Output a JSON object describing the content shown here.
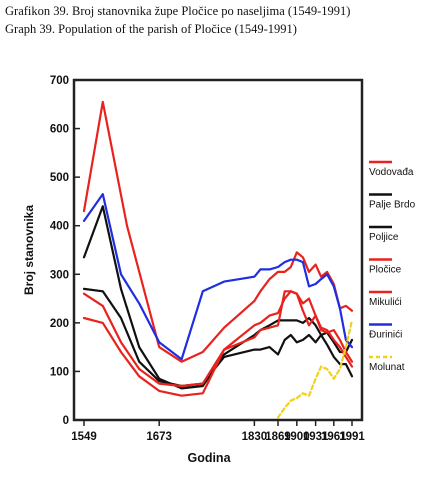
{
  "captions": {
    "line1": "Grafikon 39. Broj stanovnika župe Pločice po naseljima (1549-1991)",
    "line2": "Graph 39. Population of the parish of Pločice (1549-1991)"
  },
  "chart_data": {
    "type": "line",
    "xlabel": "Godina",
    "ylabel": "Broj stanovnika",
    "x_tick_labels": [
      "1549",
      "1673",
      "1830",
      "1869",
      "1900",
      "1931",
      "1961",
      "1991"
    ],
    "x_tick_values": [
      1549,
      1673,
      1830,
      1869,
      1900,
      1931,
      1961,
      1991
    ],
    "ylim": [
      0,
      700
    ],
    "y_ticks": [
      0,
      100,
      200,
      300,
      400,
      500,
      600,
      700
    ],
    "grid": false,
    "legend_position": "right",
    "series": [
      {
        "name": "Vodovađa",
        "color": "#e8231e",
        "points": [
          [
            1549,
            430
          ],
          [
            1580,
            655
          ],
          [
            1620,
            400
          ],
          [
            1673,
            150
          ],
          [
            1710,
            120
          ],
          [
            1745,
            140
          ],
          [
            1780,
            190
          ],
          [
            1830,
            245
          ],
          [
            1840,
            265
          ],
          [
            1855,
            290
          ],
          [
            1869,
            305
          ],
          [
            1880,
            305
          ],
          [
            1890,
            315
          ],
          [
            1900,
            345
          ],
          [
            1910,
            335
          ],
          [
            1920,
            305
          ],
          [
            1931,
            320
          ],
          [
            1940,
            295
          ],
          [
            1950,
            305
          ],
          [
            1961,
            280
          ],
          [
            1971,
            230
          ],
          [
            1981,
            235
          ],
          [
            1991,
            225
          ]
        ]
      },
      {
        "name": "Palje Brdo",
        "color": "#111111",
        "points": [
          [
            1549,
            270
          ],
          [
            1580,
            265
          ],
          [
            1610,
            210
          ],
          [
            1640,
            120
          ],
          [
            1673,
            80
          ],
          [
            1710,
            70
          ],
          [
            1745,
            75
          ],
          [
            1780,
            130
          ],
          [
            1830,
            145
          ],
          [
            1840,
            145
          ],
          [
            1855,
            150
          ],
          [
            1869,
            135
          ],
          [
            1880,
            165
          ],
          [
            1890,
            175
          ],
          [
            1900,
            160
          ],
          [
            1910,
            165
          ],
          [
            1920,
            175
          ],
          [
            1931,
            160
          ],
          [
            1940,
            175
          ],
          [
            1950,
            155
          ],
          [
            1961,
            130
          ],
          [
            1971,
            115
          ],
          [
            1981,
            115
          ],
          [
            1991,
            90
          ]
        ]
      },
      {
        "name": "Poljice",
        "color": "#111111",
        "points": [
          [
            1549,
            335
          ],
          [
            1580,
            440
          ],
          [
            1610,
            270
          ],
          [
            1640,
            150
          ],
          [
            1673,
            85
          ],
          [
            1710,
            65
          ],
          [
            1745,
            70
          ],
          [
            1780,
            135
          ],
          [
            1830,
            175
          ],
          [
            1840,
            185
          ],
          [
            1855,
            195
          ],
          [
            1869,
            205
          ],
          [
            1880,
            205
          ],
          [
            1890,
            205
          ],
          [
            1900,
            205
          ],
          [
            1910,
            200
          ],
          [
            1920,
            210
          ],
          [
            1931,
            195
          ],
          [
            1940,
            175
          ],
          [
            1950,
            180
          ],
          [
            1961,
            160
          ],
          [
            1971,
            140
          ],
          [
            1981,
            140
          ],
          [
            1991,
            165
          ]
        ]
      },
      {
        "name": "Pločice",
        "color": "#e8231e",
        "points": [
          [
            1549,
            210
          ],
          [
            1580,
            200
          ],
          [
            1610,
            140
          ],
          [
            1640,
            90
          ],
          [
            1673,
            60
          ],
          [
            1710,
            50
          ],
          [
            1745,
            55
          ],
          [
            1780,
            145
          ],
          [
            1830,
            195
          ],
          [
            1840,
            200
          ],
          [
            1855,
            215
          ],
          [
            1869,
            220
          ],
          [
            1880,
            250
          ],
          [
            1890,
            265
          ],
          [
            1900,
            260
          ],
          [
            1910,
            240
          ],
          [
            1920,
            250
          ],
          [
            1931,
            215
          ],
          [
            1940,
            190
          ],
          [
            1950,
            185
          ],
          [
            1961,
            165
          ],
          [
            1971,
            150
          ],
          [
            1981,
            130
          ],
          [
            1991,
            110
          ]
        ]
      },
      {
        "name": "Mikulići",
        "color": "#e8231e",
        "points": [
          [
            1549,
            260
          ],
          [
            1580,
            235
          ],
          [
            1610,
            160
          ],
          [
            1640,
            105
          ],
          [
            1673,
            75
          ],
          [
            1710,
            70
          ],
          [
            1745,
            75
          ],
          [
            1780,
            145
          ],
          [
            1830,
            170
          ],
          [
            1840,
            185
          ],
          [
            1855,
            190
          ],
          [
            1869,
            195
          ],
          [
            1880,
            265
          ],
          [
            1890,
            265
          ],
          [
            1900,
            260
          ],
          [
            1910,
            225
          ],
          [
            1920,
            195
          ],
          [
            1931,
            215
          ],
          [
            1940,
            185
          ],
          [
            1950,
            180
          ],
          [
            1961,
            185
          ],
          [
            1971,
            165
          ],
          [
            1981,
            140
          ],
          [
            1991,
            120
          ]
        ]
      },
      {
        "name": "Đurinići",
        "color": "#1f2ee0",
        "points": [
          [
            1549,
            410
          ],
          [
            1580,
            465
          ],
          [
            1610,
            300
          ],
          [
            1640,
            240
          ],
          [
            1673,
            160
          ],
          [
            1710,
            125
          ],
          [
            1745,
            265
          ],
          [
            1780,
            285
          ],
          [
            1830,
            295
          ],
          [
            1840,
            310
          ],
          [
            1855,
            310
          ],
          [
            1869,
            315
          ],
          [
            1880,
            325
          ],
          [
            1890,
            330
          ],
          [
            1900,
            330
          ],
          [
            1910,
            325
          ],
          [
            1920,
            275
          ],
          [
            1931,
            280
          ],
          [
            1940,
            290
          ],
          [
            1950,
            300
          ],
          [
            1961,
            275
          ],
          [
            1971,
            230
          ],
          [
            1981,
            165
          ],
          [
            1991,
            150
          ]
        ]
      },
      {
        "name": "Molunat",
        "color": "#f0d21a",
        "dashed": true,
        "points": [
          [
            1869,
            5
          ],
          [
            1880,
            25
          ],
          [
            1890,
            40
          ],
          [
            1900,
            45
          ],
          [
            1910,
            55
          ],
          [
            1920,
            50
          ],
          [
            1931,
            85
          ],
          [
            1940,
            110
          ],
          [
            1950,
            105
          ],
          [
            1961,
            85
          ],
          [
            1971,
            105
          ],
          [
            1981,
            150
          ],
          [
            1991,
            205
          ]
        ]
      }
    ]
  }
}
